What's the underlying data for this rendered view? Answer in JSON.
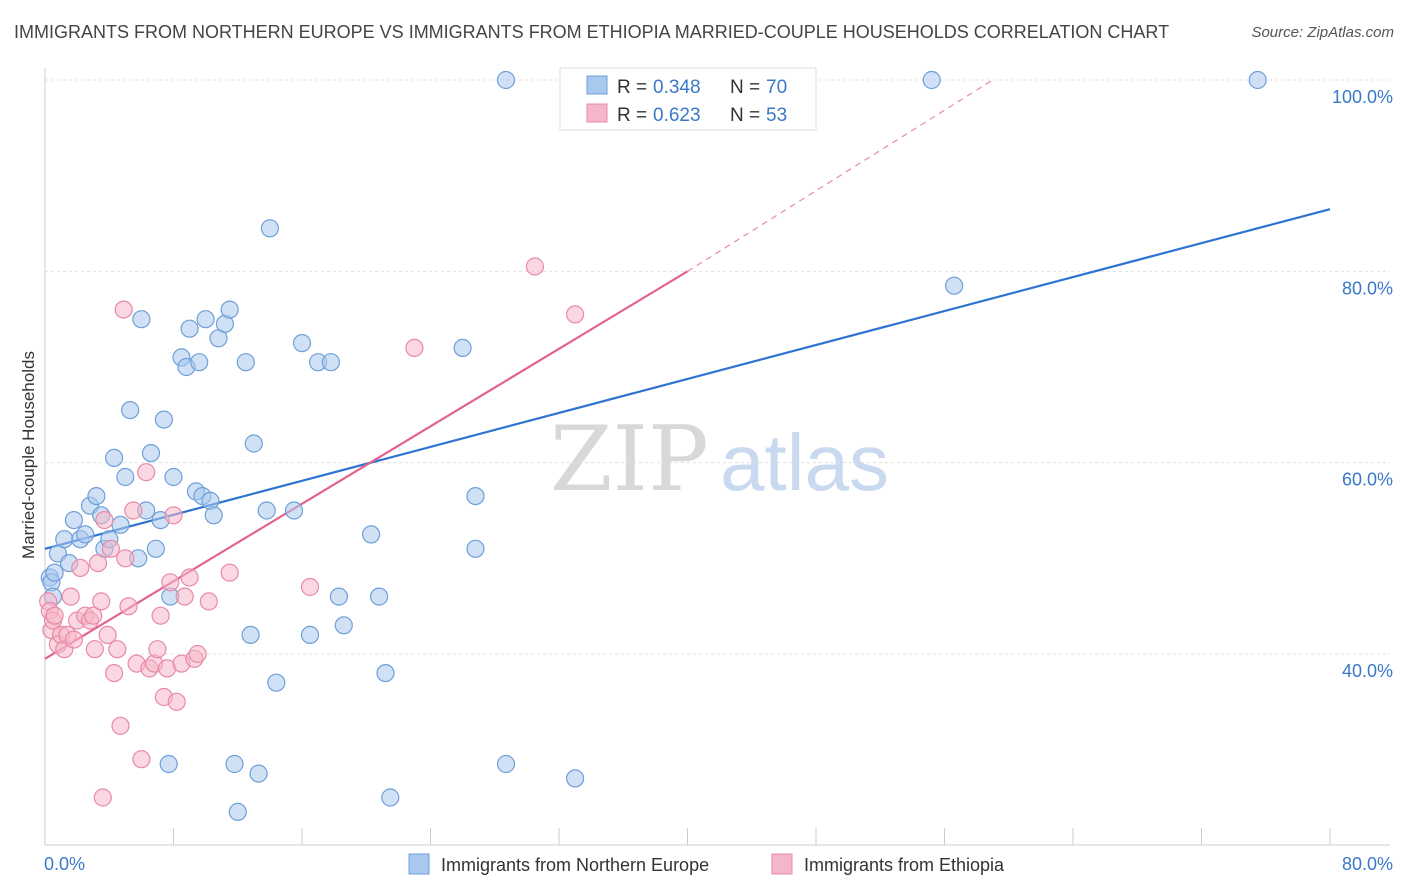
{
  "title": "IMMIGRANTS FROM NORTHERN EUROPE VS IMMIGRANTS FROM ETHIOPIA MARRIED-COUPLE HOUSEHOLDS CORRELATION CHART",
  "source": "Source: ZipAtlas.com",
  "watermark": {
    "zip": "ZIP",
    "atlas": "atlas"
  },
  "colors": {
    "blue_fill": "#a9c8ee",
    "blue_stroke": "#6f9fd8",
    "blue_line": "#2f74d0",
    "pink_fill": "#f5b6c9",
    "pink_stroke": "#e88aa8",
    "pink_line": "#e2648e",
    "text_blue": "#3a78c9"
  },
  "legend": {
    "series": [
      {
        "r_label": "R =",
        "r_value": "0.348",
        "n_label": "N =",
        "n_value": "70"
      },
      {
        "r_label": "R =",
        "r_value": "0.623",
        "n_label": "N =",
        "n_value": "53"
      }
    ]
  },
  "chart_data": {
    "type": "scatter",
    "title": "IMMIGRANTS FROM NORTHERN EUROPE VS IMMIGRANTS FROM ETHIOPIA MARRIED-COUPLE HOUSEHOLDS CORRELATION CHART",
    "xlabel": "",
    "ylabel": "Married-couple Households",
    "xlim": [
      0,
      80
    ],
    "ylim": [
      20,
      102
    ],
    "x_tick_labels": [
      {
        "value": 0,
        "label": "0.0%"
      },
      {
        "value": 80,
        "label": "80.0%"
      }
    ],
    "y_tick_labels": [
      {
        "value": 100,
        "label": "100.0%"
      },
      {
        "value": 80,
        "label": "80.0%"
      },
      {
        "value": 60,
        "label": "60.0%"
      },
      {
        "value": 40,
        "label": "40.0%"
      }
    ],
    "x_minor_ticks": [
      0,
      8,
      16,
      24,
      32,
      40,
      48,
      56,
      64,
      72,
      80
    ],
    "series": [
      {
        "name": "Immigrants from Northern Europe",
        "color": "blue",
        "trend": {
          "x0": 0,
          "y0": 51.0,
          "x1": 80,
          "y1": 86.5
        },
        "points": [
          [
            0.3,
            48.0
          ],
          [
            0.4,
            47.5
          ],
          [
            0.5,
            46.0
          ],
          [
            0.6,
            48.5
          ],
          [
            0.8,
            50.5
          ],
          [
            1.2,
            52.0
          ],
          [
            1.5,
            49.5
          ],
          [
            1.8,
            54.0
          ],
          [
            2.2,
            52.0
          ],
          [
            2.5,
            52.5
          ],
          [
            2.8,
            55.5
          ],
          [
            3.2,
            56.5
          ],
          [
            3.5,
            54.5
          ],
          [
            3.7,
            51.0
          ],
          [
            4.0,
            52.0
          ],
          [
            4.3,
            60.5
          ],
          [
            4.7,
            53.5
          ],
          [
            5.0,
            58.5
          ],
          [
            5.3,
            65.5
          ],
          [
            5.8,
            50.0
          ],
          [
            6.0,
            75.0
          ],
          [
            6.3,
            55.0
          ],
          [
            6.6,
            61.0
          ],
          [
            6.9,
            51.0
          ],
          [
            7.2,
            54.0
          ],
          [
            7.4,
            64.5
          ],
          [
            7.7,
            28.5
          ],
          [
            7.8,
            46.0
          ],
          [
            8.0,
            58.5
          ],
          [
            8.5,
            71.0
          ],
          [
            8.8,
            70.0
          ],
          [
            9.0,
            74.0
          ],
          [
            9.4,
            57.0
          ],
          [
            9.6,
            70.5
          ],
          [
            9.8,
            56.5
          ],
          [
            10.0,
            75.0
          ],
          [
            10.3,
            56.0
          ],
          [
            10.5,
            54.5
          ],
          [
            10.8,
            73.0
          ],
          [
            11.2,
            74.5
          ],
          [
            11.5,
            76.0
          ],
          [
            11.8,
            28.5
          ],
          [
            12.0,
            23.5
          ],
          [
            12.5,
            70.5
          ],
          [
            12.8,
            42.0
          ],
          [
            13.0,
            62.0
          ],
          [
            13.3,
            27.5
          ],
          [
            13.8,
            55.0
          ],
          [
            14.0,
            84.5
          ],
          [
            14.4,
            37.0
          ],
          [
            15.5,
            55.0
          ],
          [
            16.0,
            72.5
          ],
          [
            16.5,
            42.0
          ],
          [
            17.0,
            70.5
          ],
          [
            17.8,
            70.5
          ],
          [
            18.3,
            46.0
          ],
          [
            18.6,
            43.0
          ],
          [
            20.3,
            52.5
          ],
          [
            20.8,
            46.0
          ],
          [
            21.2,
            38.0
          ],
          [
            21.5,
            25.0
          ],
          [
            26.0,
            72.0
          ],
          [
            26.8,
            56.5
          ],
          [
            26.8,
            51.0
          ],
          [
            28.7,
            100.0
          ],
          [
            28.7,
            28.5
          ],
          [
            33.0,
            27.0
          ],
          [
            55.2,
            100.0
          ],
          [
            56.6,
            78.5
          ],
          [
            75.5,
            100.0
          ]
        ]
      },
      {
        "name": "Immigrants from Ethiopia",
        "color": "pink",
        "trend": {
          "x0": 0,
          "y0": 39.5,
          "x1": 40,
          "y1": 80.0
        },
        "trend_dashed": {
          "x0": 40,
          "y0": 80.0,
          "x1": 59,
          "y1": 100.0
        },
        "points": [
          [
            0.2,
            45.5
          ],
          [
            0.3,
            44.5
          ],
          [
            0.4,
            42.5
          ],
          [
            0.5,
            43.5
          ],
          [
            0.6,
            44.0
          ],
          [
            0.8,
            41.0
          ],
          [
            1.0,
            42.0
          ],
          [
            1.2,
            40.5
          ],
          [
            1.4,
            42.0
          ],
          [
            1.6,
            46.0
          ],
          [
            1.8,
            41.5
          ],
          [
            2.0,
            43.5
          ],
          [
            2.2,
            49.0
          ],
          [
            2.5,
            44.0
          ],
          [
            2.8,
            43.5
          ],
          [
            3.0,
            44.0
          ],
          [
            3.1,
            40.5
          ],
          [
            3.3,
            49.5
          ],
          [
            3.5,
            45.5
          ],
          [
            3.7,
            54.0
          ],
          [
            3.9,
            42.0
          ],
          [
            4.1,
            51.0
          ],
          [
            4.3,
            38.0
          ],
          [
            4.5,
            40.5
          ],
          [
            4.7,
            32.5
          ],
          [
            4.9,
            76.0
          ],
          [
            5.2,
            45.0
          ],
          [
            5.5,
            55.0
          ],
          [
            5.7,
            39.0
          ],
          [
            6.0,
            29.0
          ],
          [
            6.3,
            59.0
          ],
          [
            6.5,
            38.5
          ],
          [
            6.8,
            39.0
          ],
          [
            7.0,
            40.5
          ],
          [
            7.2,
            44.0
          ],
          [
            7.4,
            35.5
          ],
          [
            7.6,
            38.5
          ],
          [
            7.8,
            47.5
          ],
          [
            8.0,
            54.5
          ],
          [
            8.2,
            35.0
          ],
          [
            8.5,
            39.0
          ],
          [
            8.7,
            46.0
          ],
          [
            9.0,
            48.0
          ],
          [
            9.3,
            39.5
          ],
          [
            9.5,
            40.0
          ],
          [
            10.2,
            45.5
          ],
          [
            11.5,
            48.5
          ],
          [
            16.5,
            47.0
          ],
          [
            23.0,
            72.0
          ],
          [
            30.5,
            80.5
          ],
          [
            33.0,
            75.5
          ],
          [
            3.6,
            25.0
          ],
          [
            5.0,
            50.0
          ]
        ]
      }
    ]
  },
  "bottom_legend": [
    {
      "label": "Immigrants from Northern Europe"
    },
    {
      "label": "Immigrants from Ethiopia"
    }
  ]
}
